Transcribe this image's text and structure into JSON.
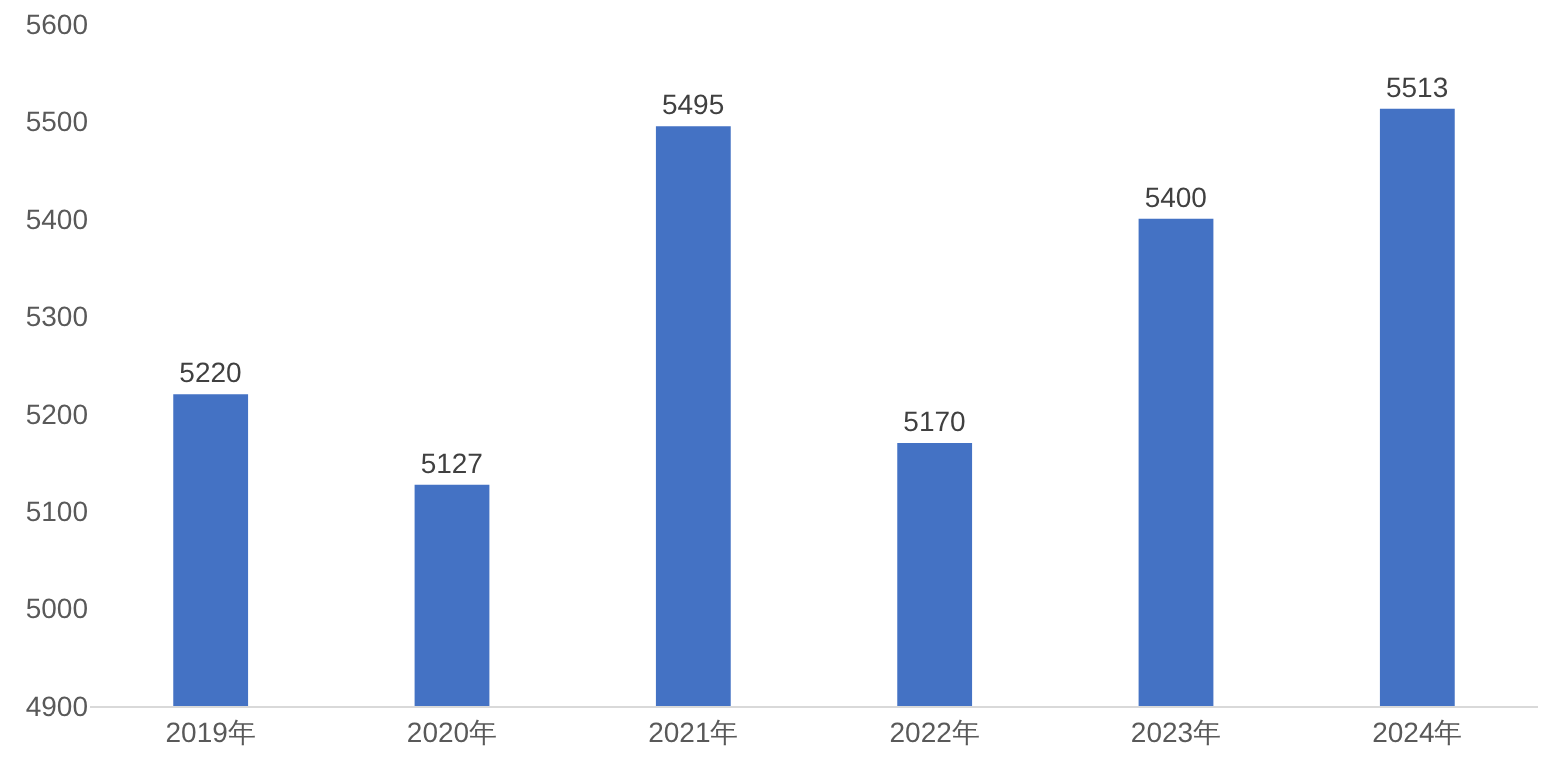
{
  "chart_data": {
    "type": "bar",
    "categories": [
      "2019年",
      "2020年",
      "2021年",
      "2022年",
      "2023年",
      "2024年"
    ],
    "values": [
      5220,
      5127,
      5495,
      5170,
      5400,
      5513
    ],
    "color": "#4472c4",
    "ylim": [
      4900,
      5600
    ],
    "yticks": [
      4900,
      5000,
      5100,
      5200,
      5300,
      5400,
      5500,
      5600
    ],
    "grid": false,
    "data_labels": true
  }
}
